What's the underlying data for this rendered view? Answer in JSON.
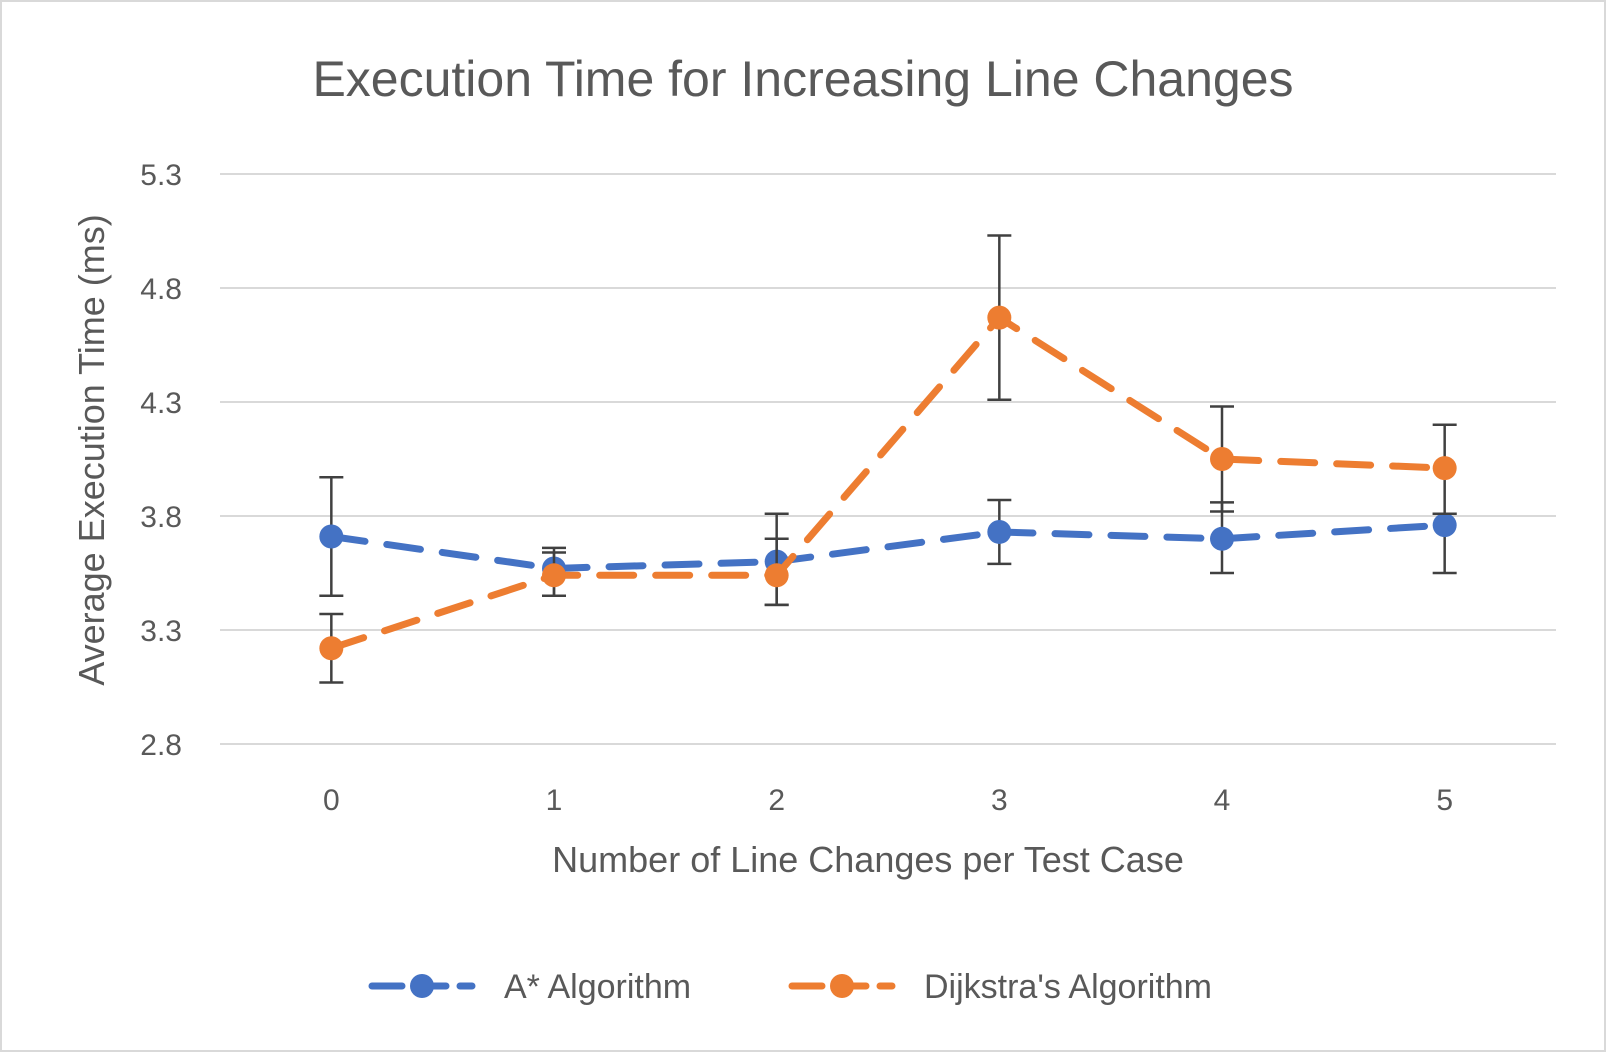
{
  "chart_data": {
    "type": "line",
    "title": "Execution Time for Increasing Line Changes",
    "xlabel": "Number of Line Changes per Test Case",
    "ylabel": "Average Execution Time (ms)",
    "categories": [
      "0",
      "1",
      "2",
      "3",
      "4",
      "5"
    ],
    "ylim": [
      2.8,
      5.3
    ],
    "yticks": [
      "2.8",
      "3.3",
      "3.8",
      "4.3",
      "4.8",
      "5.3"
    ],
    "grid": true,
    "legend_position": "bottom",
    "series": [
      {
        "name": "A* Algorithm",
        "color": "#4472C4",
        "line_style": "dashed",
        "values": [
          3.71,
          3.57,
          3.6,
          3.73,
          3.7,
          3.76
        ],
        "error_low": [
          3.45,
          3.45,
          3.41,
          3.59,
          3.55,
          3.55
        ],
        "error_high": [
          3.97,
          3.66,
          3.81,
          3.87,
          3.86,
          3.81
        ]
      },
      {
        "name": "Dijkstra's Algorithm",
        "color": "#ED7D31",
        "line_style": "dashed",
        "values": [
          3.22,
          3.54,
          3.54,
          4.67,
          4.05,
          4.01
        ],
        "error_low": [
          3.07,
          3.45,
          3.41,
          4.31,
          3.82,
          3.81
        ],
        "error_high": [
          3.37,
          3.64,
          3.7,
          5.03,
          4.28,
          4.2
        ]
      }
    ]
  }
}
